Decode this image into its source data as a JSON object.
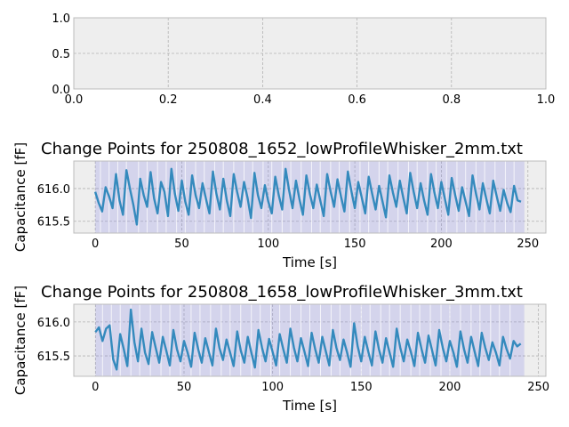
{
  "chart_data": [
    {
      "type": "line",
      "title": "",
      "xlabel": "",
      "ylabel": "",
      "xlim": [
        0.0,
        1.0
      ],
      "ylim": [
        0.0,
        1.0
      ],
      "xticks": [
        "0.0",
        "0.2",
        "0.4",
        "0.6",
        "0.8",
        "1.0"
      ],
      "yticks": [
        "0.0",
        "0.5",
        "1.0"
      ],
      "grid": true,
      "series": []
    },
    {
      "type": "line",
      "title": "Change Points for 250808_1652_lowProfileWhisker_2mm.txt",
      "xlabel": "Time [s]",
      "ylabel": "Capacitance [fF]",
      "xlim": [
        -12.4,
        260.4
      ],
      "ylim": [
        615.32,
        616.42
      ],
      "xticks": [
        "0",
        "50",
        "100",
        "150",
        "200",
        "250"
      ],
      "yticks": [
        "615.5",
        "616.0"
      ],
      "grid": true,
      "shade_range": [
        0,
        248
      ],
      "change_points": [
        3,
        8,
        13,
        18,
        25,
        30,
        36,
        41,
        47,
        52,
        58,
        63,
        69,
        74,
        80,
        86,
        91,
        97,
        102,
        108,
        113,
        119,
        125,
        130,
        136,
        141,
        147,
        153,
        158,
        164,
        169,
        175,
        181,
        186,
        192,
        197,
        203,
        209,
        214,
        220,
        225,
        231,
        237,
        242
      ],
      "series": [
        {
          "color": "#348ABD",
          "x": [
            0,
            2,
            4,
            6,
            8,
            10,
            12,
            14,
            16,
            18,
            20,
            22,
            24,
            26,
            28,
            30,
            32,
            34,
            36,
            38,
            40,
            42,
            44,
            46,
            48,
            50,
            52,
            54,
            56,
            58,
            60,
            62,
            64,
            66,
            68,
            70,
            72,
            74,
            76,
            78,
            80,
            82,
            84,
            86,
            88,
            90,
            92,
            94,
            96,
            98,
            100,
            102,
            104,
            106,
            108,
            110,
            112,
            114,
            116,
            118,
            120,
            122,
            124,
            126,
            128,
            130,
            132,
            134,
            136,
            138,
            140,
            142,
            144,
            146,
            148,
            150,
            152,
            154,
            156,
            158,
            160,
            162,
            164,
            166,
            168,
            170,
            172,
            174,
            176,
            178,
            180,
            182,
            184,
            186,
            188,
            190,
            192,
            194,
            196,
            198,
            200,
            202,
            204,
            206,
            208,
            210,
            212,
            214,
            216,
            218,
            220,
            222,
            224,
            226,
            228,
            230,
            232,
            234,
            236,
            238,
            240,
            242,
            244,
            246
          ],
          "y": [
            615.95,
            615.78,
            615.65,
            616.02,
            615.88,
            615.7,
            616.22,
            615.82,
            615.6,
            616.28,
            616.0,
            615.75,
            615.45,
            616.15,
            615.9,
            615.72,
            616.25,
            615.85,
            615.62,
            616.1,
            615.95,
            615.58,
            616.3,
            615.92,
            615.66,
            616.12,
            615.8,
            615.6,
            616.2,
            615.9,
            615.7,
            616.08,
            615.84,
            615.62,
            616.26,
            615.92,
            615.68,
            616.15,
            615.82,
            615.58,
            616.22,
            615.95,
            615.72,
            616.1,
            615.86,
            615.55,
            616.24,
            615.9,
            615.7,
            616.05,
            615.8,
            615.62,
            616.18,
            615.9,
            615.68,
            616.3,
            615.98,
            615.7,
            616.12,
            615.84,
            615.6,
            616.2,
            615.92,
            615.7,
            616.06,
            615.82,
            615.58,
            616.22,
            615.95,
            615.72,
            616.14,
            615.88,
            615.65,
            616.26,
            615.96,
            615.7,
            616.1,
            615.86,
            615.62,
            616.18,
            615.92,
            615.68,
            616.04,
            615.8,
            615.56,
            616.2,
            615.94,
            615.72,
            616.12,
            615.86,
            615.62,
            616.24,
            615.95,
            615.7,
            616.08,
            615.82,
            615.6,
            616.22,
            615.94,
            615.7,
            616.1,
            615.85,
            615.6,
            616.16,
            615.9,
            615.66,
            616.02,
            615.8,
            615.58,
            616.2,
            615.92,
            615.68,
            616.08,
            615.84,
            615.62,
            616.12,
            615.88,
            615.66,
            615.98,
            615.78,
            615.64,
            616.04,
            615.82,
            615.8
          ]
        }
      ]
    },
    {
      "type": "line",
      "title": "Change Points for 250808_1658_lowProfileWhisker_3mm.txt",
      "xlabel": "Time [s]",
      "ylabel": "Capacitance [fF]",
      "xlim": [
        -12.2,
        254.2
      ],
      "ylim": [
        615.2,
        616.26
      ],
      "xticks": [
        "0",
        "50",
        "100",
        "150",
        "200",
        "250"
      ],
      "yticks": [
        "615.5",
        "616.0"
      ],
      "grid": true,
      "shade_range": [
        0,
        242
      ],
      "change_points": [
        4,
        9,
        14,
        20,
        25,
        31,
        37,
        42,
        48,
        54,
        59,
        65,
        71,
        76,
        82,
        88,
        93,
        99,
        104,
        110,
        116,
        121,
        127,
        133,
        138,
        144,
        150,
        155,
        161,
        166,
        172,
        178,
        183,
        189,
        195,
        200,
        206,
        212,
        217,
        223,
        228,
        234
      ],
      "series": [
        {
          "color": "#348ABD",
          "x": [
            0,
            2,
            4,
            6,
            8,
            10,
            12,
            14,
            16,
            18,
            20,
            22,
            24,
            26,
            28,
            30,
            32,
            34,
            36,
            38,
            40,
            42,
            44,
            46,
            48,
            50,
            52,
            54,
            56,
            58,
            60,
            62,
            64,
            66,
            68,
            70,
            72,
            74,
            76,
            78,
            80,
            82,
            84,
            86,
            88,
            90,
            92,
            94,
            96,
            98,
            100,
            102,
            104,
            106,
            108,
            110,
            112,
            114,
            116,
            118,
            120,
            122,
            124,
            126,
            128,
            130,
            132,
            134,
            136,
            138,
            140,
            142,
            144,
            146,
            148,
            150,
            152,
            154,
            156,
            158,
            160,
            162,
            164,
            166,
            168,
            170,
            172,
            174,
            176,
            178,
            180,
            182,
            184,
            186,
            188,
            190,
            192,
            194,
            196,
            198,
            200,
            202,
            204,
            206,
            208,
            210,
            212,
            214,
            216,
            218,
            220,
            222,
            224,
            226,
            228,
            230,
            232,
            234,
            236,
            238,
            240
          ],
          "y": [
            615.85,
            615.92,
            615.72,
            615.9,
            615.95,
            615.45,
            615.3,
            615.82,
            615.6,
            615.35,
            616.18,
            615.7,
            615.42,
            615.9,
            615.55,
            615.38,
            615.85,
            615.62,
            615.4,
            615.78,
            615.58,
            615.36,
            615.88,
            615.6,
            615.42,
            615.72,
            615.55,
            615.34,
            615.84,
            615.6,
            615.4,
            615.76,
            615.56,
            615.36,
            615.9,
            615.62,
            615.44,
            615.74,
            615.55,
            615.35,
            615.86,
            615.58,
            615.4,
            615.78,
            615.55,
            615.33,
            615.88,
            615.62,
            615.42,
            615.75,
            615.56,
            615.36,
            615.82,
            615.6,
            615.4,
            615.9,
            615.62,
            615.42,
            615.76,
            615.56,
            615.35,
            615.84,
            615.6,
            615.4,
            615.78,
            615.57,
            615.36,
            615.88,
            615.62,
            615.44,
            615.74,
            615.55,
            615.34,
            615.98,
            615.64,
            615.42,
            615.78,
            615.56,
            615.36,
            615.86,
            615.6,
            615.4,
            615.76,
            615.55,
            615.34,
            615.9,
            615.62,
            615.42,
            615.74,
            615.56,
            615.35,
            615.84,
            615.6,
            615.4,
            615.8,
            615.58,
            615.36,
            615.88,
            615.62,
            615.42,
            615.72,
            615.55,
            615.34,
            615.86,
            615.6,
            615.4,
            615.78,
            615.56,
            615.35,
            615.84,
            615.62,
            615.44,
            615.7,
            615.55,
            615.36,
            615.78,
            615.6,
            615.46,
            615.72,
            615.64,
            615.68
          ]
        }
      ]
    }
  ]
}
